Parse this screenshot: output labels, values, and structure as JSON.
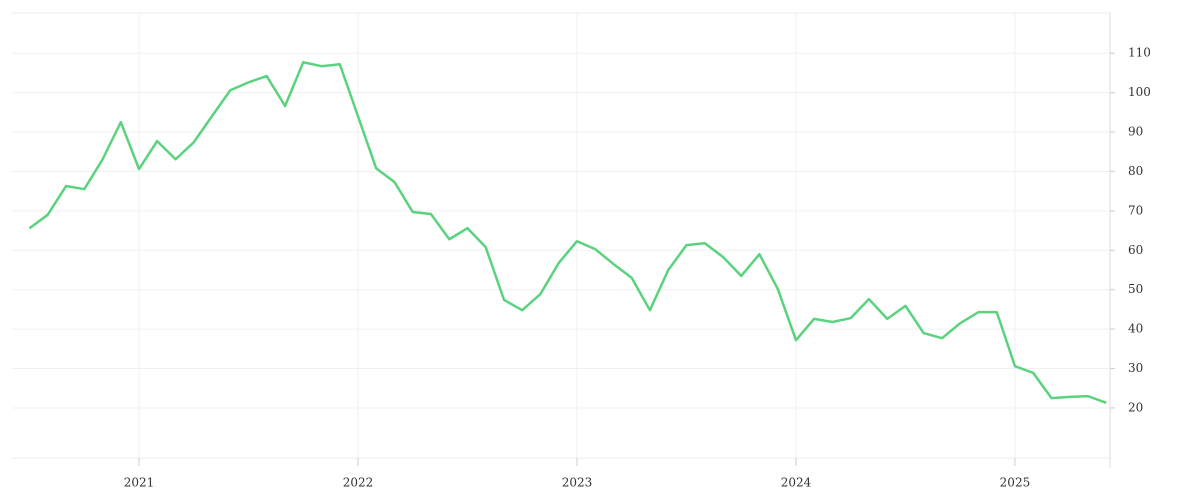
{
  "chart_data": {
    "type": "line",
    "x": [
      2020.5,
      2020.583,
      2020.667,
      2020.75,
      2020.833,
      2020.917,
      2021,
      2021.083,
      2021.167,
      2021.25,
      2021.333,
      2021.417,
      2021.5,
      2021.583,
      2021.667,
      2021.75,
      2021.833,
      2021.917,
      2022,
      2022.083,
      2022.167,
      2022.25,
      2022.333,
      2022.417,
      2022.5,
      2022.583,
      2022.667,
      2022.75,
      2022.833,
      2022.917,
      2023,
      2023.083,
      2023.167,
      2023.25,
      2023.333,
      2023.417,
      2023.5,
      2023.583,
      2023.667,
      2023.75,
      2023.833,
      2023.917,
      2024,
      2024.083,
      2024.167,
      2024.25,
      2024.333,
      2024.417,
      2024.5,
      2024.583,
      2024.667,
      2024.75,
      2024.833,
      2024.917,
      2025,
      2025.083,
      2025.167,
      2025.25,
      2025.333,
      2025.417
    ],
    "series": [
      {
        "color": "#5ad27e",
        "values": [
          65.6,
          69,
          76.3,
          75.5,
          83,
          92.5,
          80.6,
          87.7,
          83.1,
          87.4,
          94,
          100.6,
          102.6,
          104.2,
          96.6,
          107.7,
          106.7,
          107.2,
          94,
          80.8,
          77.3,
          69.7,
          69.2,
          62.8,
          65.6,
          60.8,
          47.4,
          44.8,
          48.9,
          56.8,
          62.3,
          60.3,
          56.5,
          53,
          44.8,
          55,
          61.3,
          61.8,
          58.3,
          53.5,
          59,
          50.2,
          37.2,
          42.6,
          41.8,
          42.8,
          47.6,
          42.6,
          45.9,
          39,
          37.7,
          41.5,
          44.3,
          44.3,
          30.6,
          28.9,
          22.5,
          22.8,
          23,
          21.3
        ]
      }
    ],
    "xlim": [
      2020.42,
      2025.434
    ],
    "xticks": [
      2021,
      2022,
      2023,
      2024,
      2025
    ],
    "ylim": [
      7.3,
      120.2
    ],
    "yticks": [
      20,
      30,
      40,
      50,
      60,
      70,
      80,
      90,
      100,
      110
    ],
    "grid": true
  }
}
